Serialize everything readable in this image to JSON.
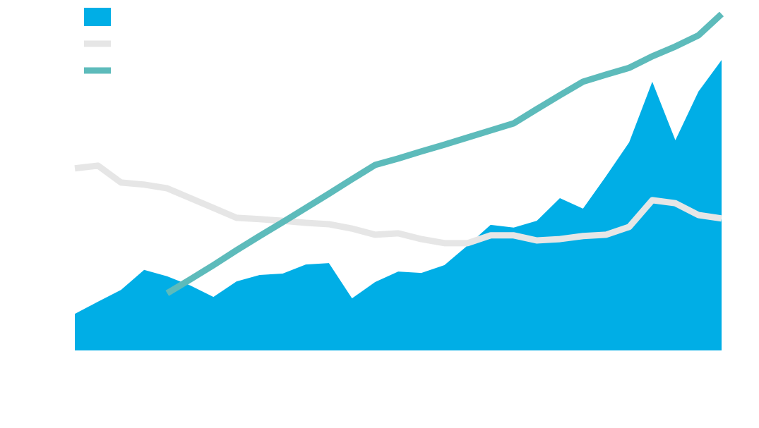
{
  "chart_data": {
    "type": "area-line",
    "categories": [
      null,
      null,
      null,
      null,
      null,
      null,
      null,
      null,
      null,
      null,
      null,
      null,
      null,
      null,
      null,
      null,
      null,
      null,
      null,
      null,
      null,
      null,
      null,
      null,
      null,
      null,
      null,
      null,
      null
    ],
    "ylim": [
      0,
      100
    ],
    "series": [
      {
        "type": "area",
        "color": "#00aee6",
        "values": [
          10.8,
          14.4,
          17.9,
          23.8,
          21.9,
          19.2,
          15.8,
          20.4,
          22.3,
          22.7,
          25.4,
          25.8,
          15.4,
          20.2,
          23.3,
          22.9,
          25.2,
          31.0,
          37.1,
          36.3,
          38.3,
          45.0,
          41.9,
          51.5,
          61.5,
          79.4,
          62.1,
          76.5,
          85.8
        ]
      },
      {
        "type": "line",
        "color": "#e6e6e6",
        "values": [
          53.8,
          54.6,
          49.6,
          49.0,
          47.9,
          45.0,
          42.1,
          39.2,
          38.8,
          38.3,
          37.7,
          37.3,
          36.0,
          34.2,
          34.6,
          32.9,
          31.7,
          31.7,
          34.0,
          34.0,
          32.5,
          32.9,
          33.8,
          34.2,
          36.5,
          44.4,
          43.5,
          40.0,
          39.0
        ]
      },
      {
        "type": "line",
        "color": "#5dbbbb",
        "values": [
          null,
          null,
          null,
          null,
          16.9,
          21.0,
          25.2,
          29.6,
          33.8,
          37.9,
          42.1,
          46.3,
          50.6,
          54.8,
          56.7,
          58.8,
          60.8,
          62.9,
          65.0,
          67.1,
          71.3,
          75.4,
          79.4,
          81.5,
          83.5,
          86.9,
          89.8,
          93.1,
          99.4
        ]
      }
    ],
    "legend": "top-left"
  }
}
